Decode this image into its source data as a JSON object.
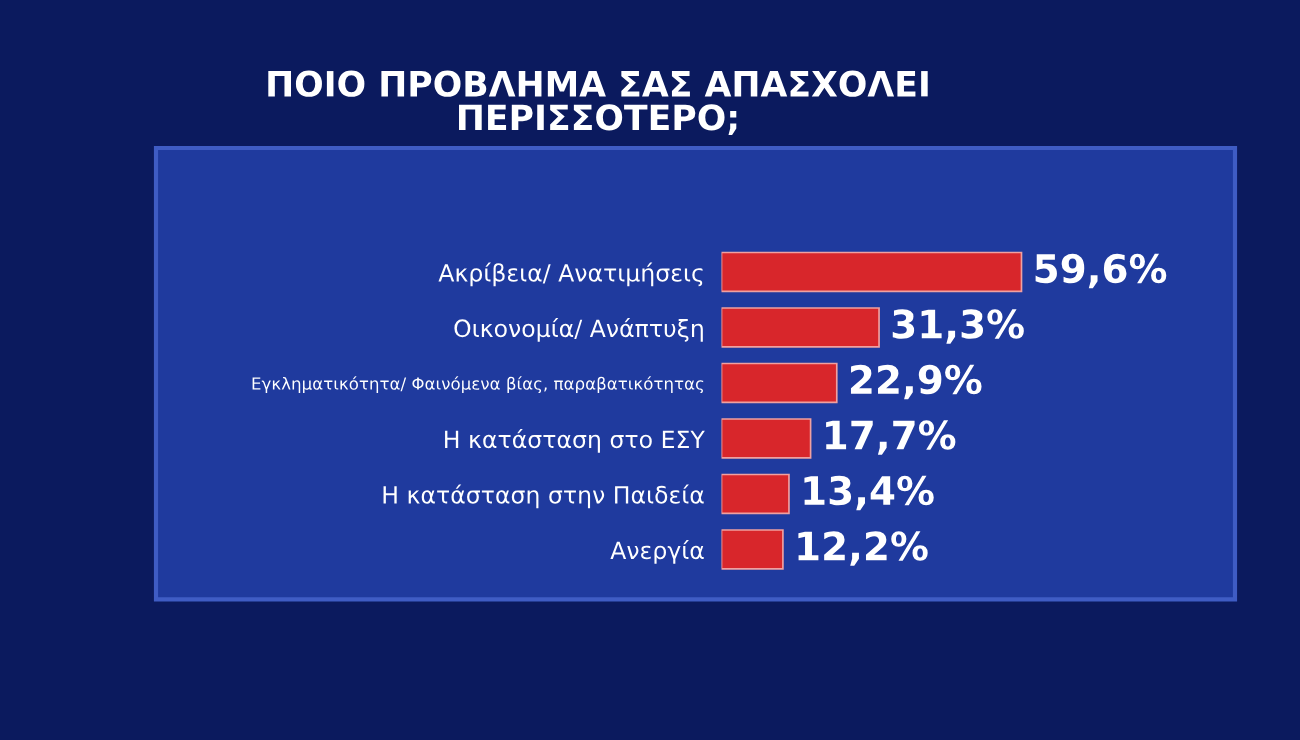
{
  "chart_data": {
    "type": "bar",
    "orientation": "horizontal",
    "title": "ΠΟΙΟ ΠΡΟΒΛΗΜΑ ΣΑΣ ΑΠΑΣΧΟΛΕΙ\nΠΕΡΙΣΣΟΤΕΡΟ;",
    "categories": [
      "Ακρίβεια/ Ανατιμήσεις",
      "Οικονομία/ Ανάπτυξη",
      "Εγκληματικότητα/ Φαινόμενα βίας, παραβατικότητας",
      "Η κατάσταση στο ΕΣΥ",
      "Η κατάσταση στην Παιδεία",
      "Ανεργία"
    ],
    "values": [
      59.6,
      31.3,
      22.9,
      17.7,
      13.4,
      12.2
    ],
    "value_labels": [
      "59,6%",
      "31,3%",
      "22,9%",
      "17,7%",
      "13,4%",
      "12,2%"
    ],
    "color": "#d8262b",
    "tick_labels": "y"
  }
}
